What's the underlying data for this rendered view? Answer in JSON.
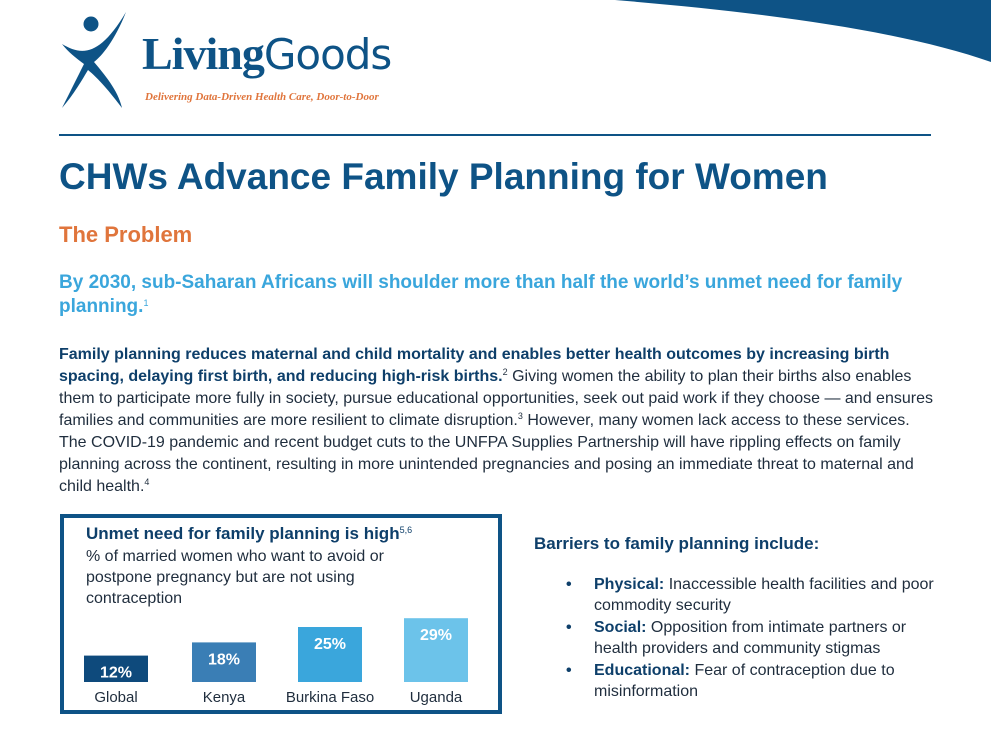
{
  "brand": {
    "name_part1": "Living",
    "name_part2": "Goods",
    "tagline": "Delivering Data-Driven Health Care, Door-to-Door"
  },
  "title": "CHWs Advance Family Planning for Women",
  "problem_heading": "The Problem",
  "lead": {
    "text": "By 2030, sub-Saharan Africans will shoulder more than half the world’s unmet need for family planning.",
    "ref": "1"
  },
  "body": {
    "bold_text": "Family planning reduces maternal and child mortality and enables better health outcomes by increasing birth spacing, delaying first birth, and reducing high-risk births.",
    "ref1": "2",
    "text1": " Giving women the ability to plan their births also enables them to participate more fully in society, pursue educational opportunities, seek out paid work if they choose — and ensures families and communities are more resilient to climate disruption.",
    "ref2": "3",
    "text2": " However, many women lack access to these services. The COVID-19 pandemic and recent budget cuts to the UNFPA Supplies Partnership will have rippling effects on family planning across the continent, resulting in more unintended pregnancies and posing an immediate threat to maternal and child health.",
    "ref3": "4"
  },
  "panel": {
    "title": "Unmet need for family planning is high",
    "ref": "5,6",
    "subtitle": "% of married women who want to avoid or postpone pregnancy but are not using contraception"
  },
  "chart_data": {
    "type": "bar",
    "categories": [
      "Global",
      "Kenya",
      "Burkina Faso",
      "Uganda"
    ],
    "values": [
      12,
      18,
      25,
      29
    ],
    "data_labels": [
      "12%",
      "18%",
      "25%",
      "29%"
    ],
    "colors": [
      "#0e4a7c",
      "#3a7eb5",
      "#3aa6dc",
      "#6cc3ea"
    ],
    "title": "",
    "xlabel": "",
    "ylabel": "",
    "grid": false
  },
  "barriers": {
    "title": "Barriers to family planning include:",
    "bullet": "•",
    "items": [
      {
        "label": "Physical:",
        "text": " Inaccessible health facilities and poor commodity security"
      },
      {
        "label": "Social:",
        "text": " Opposition from intimate partners or health providers and community stigmas"
      },
      {
        "label": "Educational:",
        "text": " Fear of contraception due to misinformation"
      }
    ]
  },
  "colors": {
    "brand_blue": "#0e5386",
    "accent_orange": "#e0753c",
    "light_blue": "#3aa6dc"
  }
}
